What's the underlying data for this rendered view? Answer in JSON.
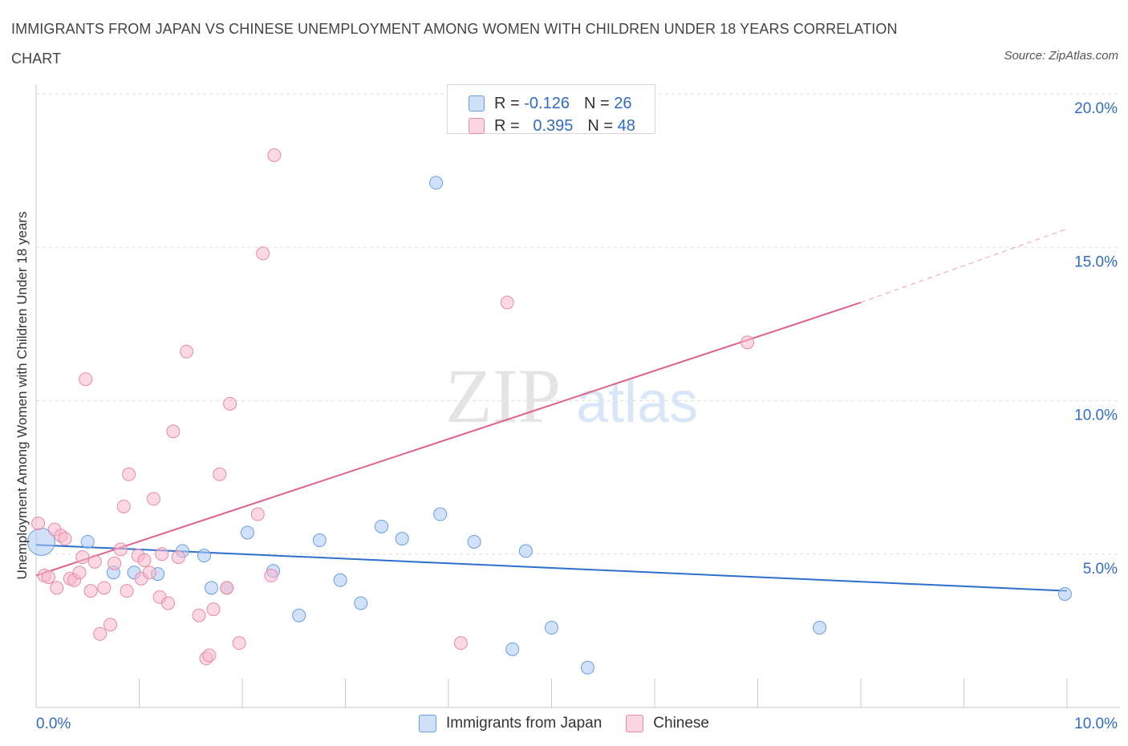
{
  "title": "IMMIGRANTS FROM JAPAN VS CHINESE UNEMPLOYMENT AMONG WOMEN WITH CHILDREN UNDER 18 YEARS CORRELATION CHART",
  "source": "Source: ZipAtlas.com",
  "watermark": {
    "zip": "ZIP",
    "atlas": "atlas"
  },
  "legend_top": {
    "rows": [
      {
        "r_label": "R =",
        "r_value": "-0.126",
        "n_label": "N =",
        "n_value": "26",
        "color": "#a9c8f4"
      },
      {
        "r_label": "R =",
        "r_value": "0.395",
        "n_label": "N =",
        "n_value": "48",
        "color": "#f7b8cc"
      }
    ]
  },
  "legend_bottom": [
    {
      "label": "Immigrants from Japan",
      "color": "#a9c8f4"
    },
    {
      "label": "Chinese",
      "color": "#f7b8cc"
    }
  ],
  "colors": {
    "japan_fill": "#a9c8f4",
    "japan_stroke": "#6a9ee0",
    "japan_line": "#2f6fcc",
    "chinese_fill": "#f7b8cc",
    "chinese_stroke": "#e88aa8",
    "chinese_line": "#e0608c",
    "tick_text": "#2f6bc8",
    "grid": "#dddddd"
  },
  "chart_data": {
    "type": "scatter",
    "title": "IMMIGRANTS FROM JAPAN VS CHINESE UNEMPLOYMENT AMONG WOMEN WITH CHILDREN UNDER 18 YEARS CORRELATION CHART",
    "xlabel": "",
    "ylabel": "Unemployment Among Women with Children Under 18 years",
    "xlim": [
      0,
      10
    ],
    "ylim": [
      0,
      20
    ],
    "x_tick_labels": [
      {
        "value": 0,
        "label": "0.0%"
      },
      {
        "value": 10,
        "label": "10.0%"
      }
    ],
    "y_tick_labels": [
      {
        "value": 5,
        "label": "5.0%"
      },
      {
        "value": 10,
        "label": "10.0%"
      },
      {
        "value": 15,
        "label": "15.0%"
      },
      {
        "value": 20,
        "label": "20.0%"
      }
    ],
    "grid": "horizontal dashed",
    "legend_placement": "bottom",
    "series": [
      {
        "name": "Immigrants from Japan",
        "points": [
          {
            "x": 0.05,
            "y": 5.4,
            "big": true
          },
          {
            "x": 0.75,
            "y": 4.4
          },
          {
            "x": 0.95,
            "y": 4.4
          },
          {
            "x": 1.18,
            "y": 4.35
          },
          {
            "x": 1.42,
            "y": 5.1
          },
          {
            "x": 1.63,
            "y": 4.95
          },
          {
            "x": 1.85,
            "y": 3.9
          },
          {
            "x": 2.05,
            "y": 5.7
          },
          {
            "x": 2.3,
            "y": 4.45
          },
          {
            "x": 2.55,
            "y": 3.0
          },
          {
            "x": 2.75,
            "y": 5.45
          },
          {
            "x": 2.95,
            "y": 4.15
          },
          {
            "x": 3.15,
            "y": 3.4
          },
          {
            "x": 3.35,
            "y": 5.9
          },
          {
            "x": 3.55,
            "y": 5.5
          },
          {
            "x": 3.88,
            "y": 17.1
          },
          {
            "x": 3.92,
            "y": 6.3
          },
          {
            "x": 4.25,
            "y": 5.4
          },
          {
            "x": 4.62,
            "y": 1.9
          },
          {
            "x": 4.75,
            "y": 5.1
          },
          {
            "x": 5.0,
            "y": 2.6
          },
          {
            "x": 5.35,
            "y": 1.3
          },
          {
            "x": 0.5,
            "y": 5.4
          },
          {
            "x": 7.6,
            "y": 2.6
          },
          {
            "x": 9.98,
            "y": 3.7
          },
          {
            "x": 1.7,
            "y": 3.9
          }
        ],
        "trend": {
          "x0": 0,
          "y0": 5.3,
          "x1": 10,
          "y1": 3.8
        }
      },
      {
        "name": "Chinese",
        "points": [
          {
            "x": 0.02,
            "y": 6.0
          },
          {
            "x": 0.08,
            "y": 4.3
          },
          {
            "x": 0.12,
            "y": 4.25
          },
          {
            "x": 0.18,
            "y": 5.8
          },
          {
            "x": 0.2,
            "y": 3.9
          },
          {
            "x": 0.24,
            "y": 5.6
          },
          {
            "x": 0.28,
            "y": 5.5
          },
          {
            "x": 0.33,
            "y": 4.2
          },
          {
            "x": 0.37,
            "y": 4.15
          },
          {
            "x": 0.42,
            "y": 4.4
          },
          {
            "x": 0.45,
            "y": 4.9
          },
          {
            "x": 0.48,
            "y": 10.7
          },
          {
            "x": 0.53,
            "y": 3.8
          },
          {
            "x": 0.57,
            "y": 4.75
          },
          {
            "x": 0.62,
            "y": 2.4
          },
          {
            "x": 0.66,
            "y": 3.9
          },
          {
            "x": 0.72,
            "y": 2.7
          },
          {
            "x": 0.76,
            "y": 4.7
          },
          {
            "x": 0.82,
            "y": 5.15
          },
          {
            "x": 0.85,
            "y": 6.55
          },
          {
            "x": 0.88,
            "y": 3.8
          },
          {
            "x": 0.9,
            "y": 7.6
          },
          {
            "x": 0.99,
            "y": 4.95
          },
          {
            "x": 1.02,
            "y": 4.2
          },
          {
            "x": 1.05,
            "y": 4.8
          },
          {
            "x": 1.1,
            "y": 4.4
          },
          {
            "x": 1.14,
            "y": 6.8
          },
          {
            "x": 1.2,
            "y": 3.6
          },
          {
            "x": 1.22,
            "y": 5.0
          },
          {
            "x": 1.28,
            "y": 3.4
          },
          {
            "x": 1.33,
            "y": 9.0
          },
          {
            "x": 1.38,
            "y": 4.9
          },
          {
            "x": 1.46,
            "y": 11.6
          },
          {
            "x": 1.58,
            "y": 3.0
          },
          {
            "x": 1.65,
            "y": 1.6
          },
          {
            "x": 1.68,
            "y": 1.7
          },
          {
            "x": 1.72,
            "y": 3.2
          },
          {
            "x": 1.78,
            "y": 7.6
          },
          {
            "x": 1.85,
            "y": 3.9
          },
          {
            "x": 1.88,
            "y": 9.9
          },
          {
            "x": 1.97,
            "y": 2.1
          },
          {
            "x": 2.15,
            "y": 6.3
          },
          {
            "x": 2.2,
            "y": 14.8
          },
          {
            "x": 2.28,
            "y": 4.3
          },
          {
            "x": 2.31,
            "y": 18.0
          },
          {
            "x": 4.12,
            "y": 2.1
          },
          {
            "x": 4.57,
            "y": 13.2
          },
          {
            "x": 6.9,
            "y": 11.9
          }
        ],
        "trend": {
          "x0": 0,
          "y0": 4.3,
          "x1": 8.0,
          "y1": 13.2
        },
        "trend_dashed_to": {
          "x": 10,
          "y": 15.6
        }
      }
    ]
  }
}
